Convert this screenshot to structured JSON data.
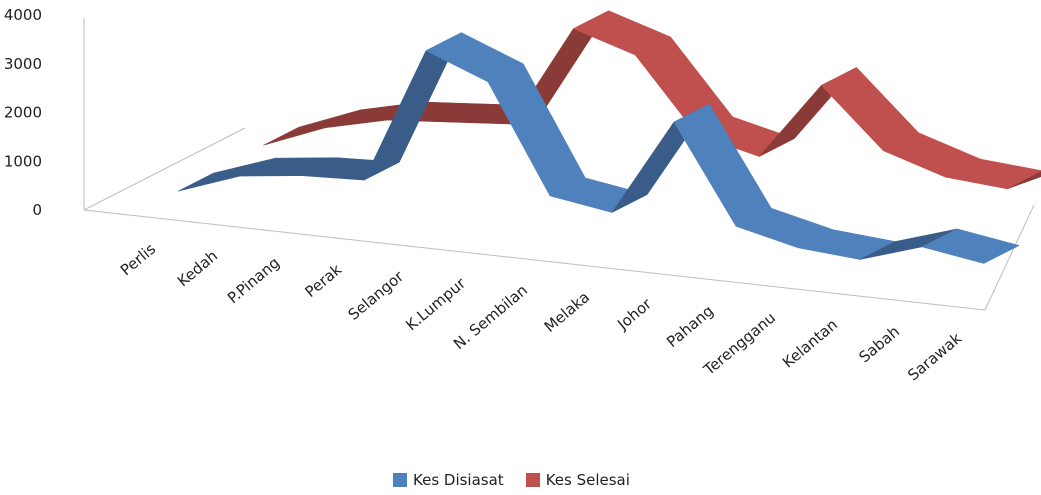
{
  "chart_data": {
    "type": "line",
    "style": "3d-ribbon",
    "categories": [
      "Perlis",
      "Kedah",
      "P.Pinang",
      "Perak",
      "Selangor",
      "K.Lumpur",
      "N. Sembilan",
      "Melaka",
      "Johor",
      "Pahang",
      "Terengganu",
      "Kelantan",
      "Sabah",
      "Sarawak"
    ],
    "series": [
      {
        "name": "Kes Disiasat",
        "color": "#4f81bd",
        "values": [
          150,
          600,
          750,
          800,
          3600,
          3100,
          900,
          700,
          2700,
          700,
          400,
          300,
          700,
          500
        ]
      },
      {
        "name": "Kes Selesai",
        "color": "#c0504d",
        "values": [
          200,
          700,
          1000,
          1100,
          1200,
          3300,
          2900,
          1400,
          1100,
          2700,
          1500,
          1100,
          1000,
          1600
        ]
      }
    ],
    "ylim": [
      0,
      4000
    ],
    "yticks": [
      0,
      1000,
      2000,
      3000,
      4000
    ],
    "grid": false,
    "legend_position": "bottom"
  }
}
